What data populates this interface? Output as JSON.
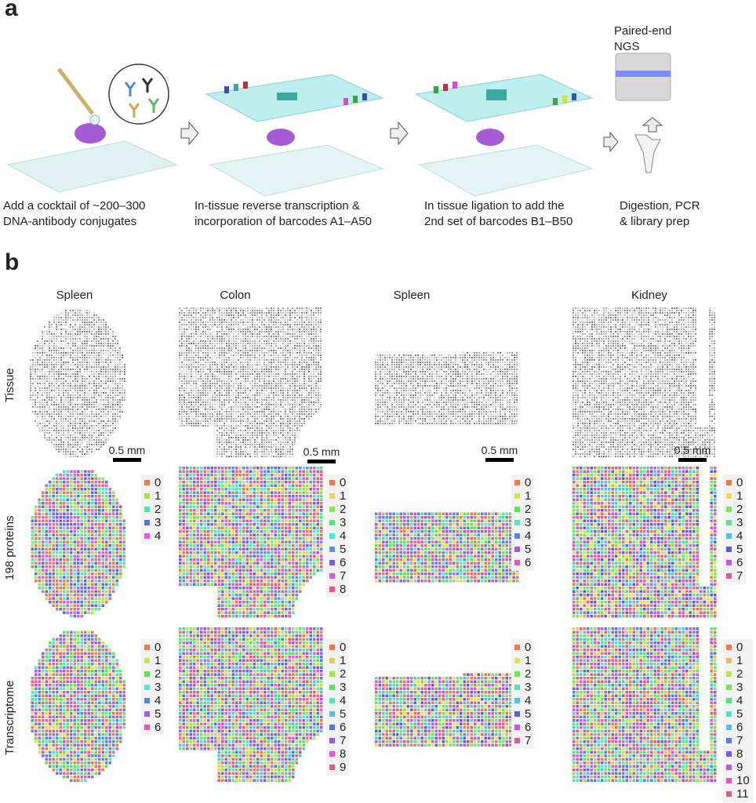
{
  "panel_a": {
    "label": "a",
    "steps": [
      {
        "line1": "Add a cocktail of ~200–300",
        "line2": "DNA-antibody conjugates"
      },
      {
        "line1": "In-tissue reverse transcription &",
        "line2": "incorporation of barcodes A1–A50"
      },
      {
        "line1": "In tissue ligation to add the",
        "line2": "2nd set of barcodes B1–B50"
      },
      {
        "line1": "Digestion, PCR",
        "line2": "& library prep"
      }
    ],
    "sequencer": {
      "line1": "Paired-end",
      "line2": "NGS"
    },
    "icons": [
      "pipette-icon",
      "antibody-cocktail-icon",
      "microfluidic-chip-icon",
      "arrow-right-icon",
      "pcr-tube-icon",
      "sequencer-icon",
      "arrow-up-icon"
    ]
  },
  "panel_b": {
    "label": "b",
    "columns": [
      "Spleen",
      "Colon",
      "Spleen",
      "Kidney"
    ],
    "rows": [
      "Tissue",
      "198 proteins",
      "Transcriptome"
    ],
    "scale_bar": "0.5 mm",
    "protein_clusters": [
      [
        "0",
        "1",
        "2",
        "3",
        "4"
      ],
      [
        "0",
        "1",
        "2",
        "3",
        "4",
        "5",
        "6",
        "7",
        "8"
      ],
      [
        "0",
        "1",
        "2",
        "3",
        "4",
        "5",
        "6"
      ],
      [
        "0",
        "1",
        "2",
        "3",
        "4",
        "5",
        "6",
        "7"
      ]
    ],
    "transcriptome_clusters": [
      [
        "0",
        "1",
        "2",
        "3",
        "4",
        "5",
        "6"
      ],
      [
        "0",
        "1",
        "2",
        "3",
        "4",
        "5",
        "6",
        "7",
        "8",
        "9"
      ],
      [
        "0",
        "1",
        "2",
        "3",
        "4",
        "5",
        "6",
        "7"
      ],
      [
        "0",
        "1",
        "2",
        "3",
        "4",
        "5",
        "6",
        "7",
        "8",
        "9",
        "10",
        "11"
      ]
    ],
    "palette": "ggplot-hue"
  }
}
